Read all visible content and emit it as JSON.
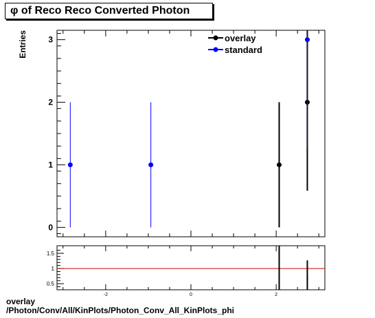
{
  "title": "φ of Reco Reco Converted Photon",
  "footer": {
    "line1": "overlay",
    "line2": "/Photon/Conv/All/KinPlots/Photon_Conv_All_KinPlots_phi"
  },
  "chart_data": [
    {
      "type": "scatter",
      "panel": "main",
      "ylabel": "Entries",
      "xlim": [
        -3.1416,
        3.1416
      ],
      "ylim": [
        -0.15,
        3.15
      ],
      "yticks": [
        0,
        1,
        2,
        3
      ],
      "legend_position": "top-right",
      "grid": false,
      "series": [
        {
          "name": "overlay",
          "color": "#000000",
          "points": [
            {
              "x": 2.07,
              "y": 1,
              "err": 1
            },
            {
              "x": 2.73,
              "y": 2,
              "err": 1.414
            }
          ]
        },
        {
          "name": "standard",
          "color": "#0000ff",
          "points": [
            {
              "x": -2.83,
              "y": 1,
              "err": 1
            },
            {
              "x": -0.94,
              "y": 1,
              "err": 1
            },
            {
              "x": 2.73,
              "y": 3,
              "err": 1.732
            }
          ]
        }
      ]
    },
    {
      "type": "scatter",
      "panel": "ratio",
      "xlim": [
        -3.1416,
        3.1416
      ],
      "ylim": [
        0.3,
        1.75
      ],
      "yticks": [
        0.5,
        1,
        1.5
      ],
      "ytick_labels": [
        "0.5",
        "1",
        "1.5"
      ],
      "xticks": [
        -2,
        0,
        2
      ],
      "xtick_labels": [
        "-2",
        "0",
        "2"
      ],
      "reference_line": {
        "y": 1,
        "color": "#cc0000"
      },
      "series": [
        {
          "color": "#000000",
          "points": [
            {
              "x": 2.07,
              "y": 1,
              "err": 1.414
            },
            {
              "x": 2.73,
              "y": 0.667,
              "err": 0.6
            }
          ]
        }
      ]
    }
  ]
}
